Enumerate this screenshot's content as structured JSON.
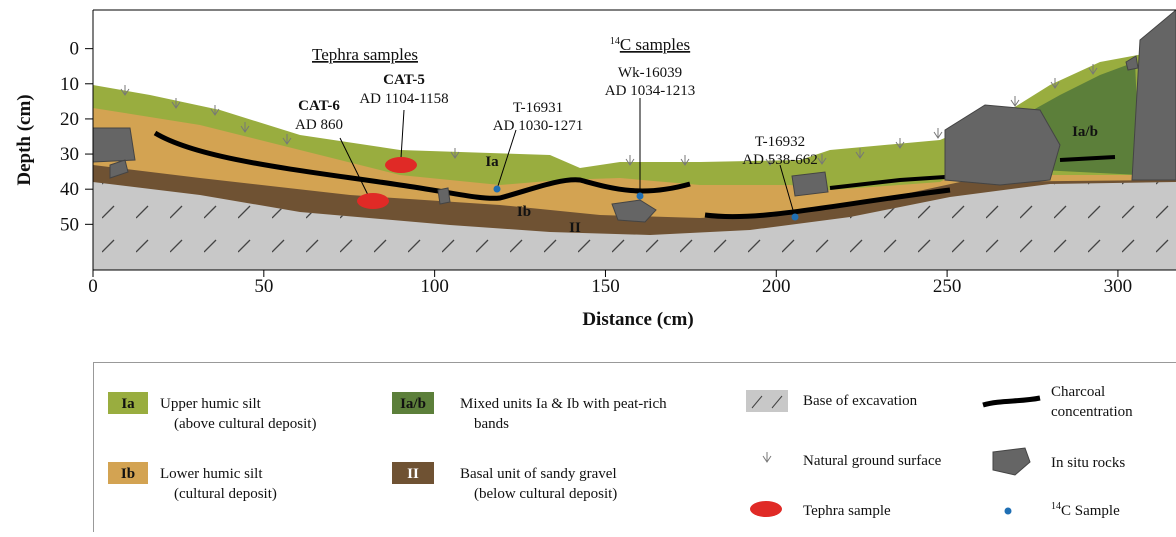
{
  "axes": {
    "x_label": "Distance (cm)",
    "y_label": "Depth (cm)",
    "xlim": [
      0,
      317
    ],
    "ylim": [
      -11,
      63
    ],
    "xticks": [
      0,
      50,
      100,
      150,
      200,
      250,
      300
    ],
    "yticks": [
      0,
      10,
      20,
      30,
      40,
      50
    ]
  },
  "layer_labels": {
    "ia": "Ia",
    "ib": "Ib",
    "ii": "II",
    "iab": "Ia/b"
  },
  "tephra": {
    "title": "Tephra samples",
    "samples": [
      {
        "id": "CAT-5",
        "date": "AD 1104-1158"
      },
      {
        "id": "CAT-6",
        "date": "AD 860"
      }
    ]
  },
  "radiocarbon": {
    "title_sup": "14",
    "title": "C samples",
    "samples": [
      {
        "id": "T-16931",
        "date": "AD 1030-1271"
      },
      {
        "id": "Wk-16039",
        "date": "AD 1034-1213"
      },
      {
        "id": "T-16932",
        "date": "AD 538-662"
      }
    ]
  },
  "legend": {
    "units": [
      {
        "code": "Ia",
        "lines": [
          "Upper humic silt",
          "(above cultural deposit)"
        ]
      },
      {
        "code": "Ib",
        "lines": [
          "Lower humic silt",
          "(cultural deposit)"
        ]
      },
      {
        "code": "Ia/b",
        "lines": [
          "Mixed units Ia & Ib with peat-rich",
          "bands"
        ]
      },
      {
        "code": "II",
        "lines": [
          "Basal unit of sandy gravel",
          "(below cultural deposit)"
        ]
      }
    ],
    "symbols": {
      "base": "Base of excavation",
      "ground": "Natural ground surface",
      "tephra": "Tephra sample",
      "charcoal": [
        "Charcoal",
        "concentration"
      ],
      "rocks": "In situ rocks",
      "c14_sup": "14",
      "c14": "C Sample"
    }
  }
}
